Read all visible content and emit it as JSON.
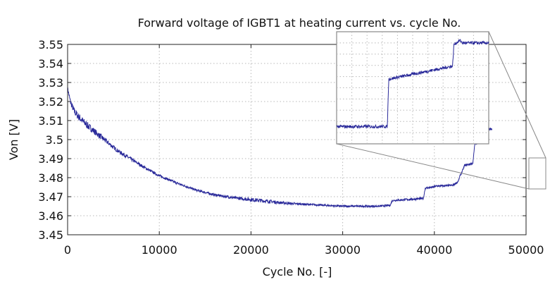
{
  "chart_data": {
    "type": "line",
    "title": "Forward voltage of IGBT1 at heating current  vs. cycle No.",
    "xlabel": "Cycle No. [-]",
    "ylabel": "Von [V]",
    "xlim": [
      0,
      50000
    ],
    "ylim": [
      3.45,
      3.55
    ],
    "x_ticks": [
      "0",
      "10000",
      "20000",
      "30000",
      "40000",
      "50000"
    ],
    "y_ticks": [
      "3.45",
      "3.46",
      "3.47",
      "3.48",
      "3.49",
      "3.5",
      "3.51",
      "3.52",
      "3.53",
      "3.54",
      "3.55"
    ],
    "grid": true,
    "line_color": "#2a2a9a",
    "series": [
      {
        "x": [
          0,
          300,
          700,
          1200,
          1800,
          2500,
          3500,
          4500,
          5500,
          6500,
          7500,
          8500,
          10000,
          12000,
          14000,
          16000,
          18000,
          20000,
          22000,
          24000,
          26000,
          28000,
          30000,
          32000,
          34000,
          35200,
          35400,
          37000,
          38800,
          39000,
          39900,
          40100,
          42000,
          42600,
          42800,
          43100,
          43300,
          44200,
          44400,
          45200,
          45400,
          46300
        ],
        "y": [
          3.527,
          3.52,
          3.515,
          3.512,
          3.509,
          3.506,
          3.502,
          3.498,
          3.494,
          3.491,
          3.488,
          3.485,
          3.481,
          3.477,
          3.4735,
          3.471,
          3.4695,
          3.4685,
          3.4675,
          3.4665,
          3.466,
          3.4655,
          3.465,
          3.465,
          3.465,
          3.4655,
          3.468,
          3.4685,
          3.469,
          3.4745,
          3.475,
          3.4755,
          3.476,
          3.478,
          3.481,
          3.484,
          3.4865,
          3.4875,
          3.4975,
          3.5,
          3.505,
          3.5055
        ],
        "noise": [
          0.001,
          0.0015,
          0.002,
          0.002,
          0.002,
          0.0018,
          0.0015,
          0.0012,
          0.001,
          0.001,
          0.0008,
          0.0007,
          0.0006,
          0.0006,
          0.0006,
          0.0006,
          0.0007,
          0.001,
          0.0009,
          0.0006,
          0.0005,
          0.0005,
          0.0005,
          0.0005,
          0.0005,
          0.0005,
          0.0005,
          0.0006,
          0.0006,
          0.0005,
          0.0005,
          0.0005,
          0.0005,
          0.0005,
          0.0005,
          0.0005,
          0.0005,
          0.0005,
          0.0005,
          0.0005,
          0.0005,
          0.0005
        ]
      }
    ],
    "inset": {
      "xlim": [
        46650,
        47700
      ],
      "ylim": [
        3.4755,
        3.4885
      ],
      "x": [
        46650,
        46700,
        47000,
        47010,
        47300,
        47450,
        47460,
        47500,
        47520,
        47700
      ],
      "y": [
        3.4775,
        3.4775,
        3.4775,
        3.483,
        3.484,
        3.4845,
        3.487,
        3.4875,
        3.4872,
        3.4872
      ],
      "zoom_box": {
        "xlim": [
          46650,
          47700
        ],
        "ylim": [
          3.4755,
          3.4885
        ]
      }
    }
  }
}
